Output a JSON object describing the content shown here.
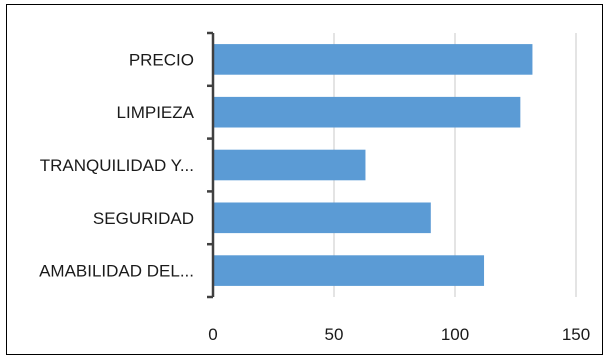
{
  "chart_data": {
    "type": "bar",
    "orientation": "horizontal",
    "categories": [
      "PRECIO",
      "LIMPIEZA",
      "TRANQUILIDAD Y...",
      "SEGURIDAD",
      "AMABILIDAD DEL..."
    ],
    "values": [
      132,
      127,
      63,
      90,
      112
    ],
    "xlim": [
      0,
      150
    ],
    "xticks": [
      "0",
      "50",
      "100",
      "150"
    ],
    "grid": true,
    "title": "",
    "xlabel": "",
    "ylabel": "",
    "legend": "none",
    "colors": {
      "bar": "#5b9bd5",
      "grid": "#c8c8c8",
      "axis": "#404040",
      "frame": "#000000"
    }
  }
}
